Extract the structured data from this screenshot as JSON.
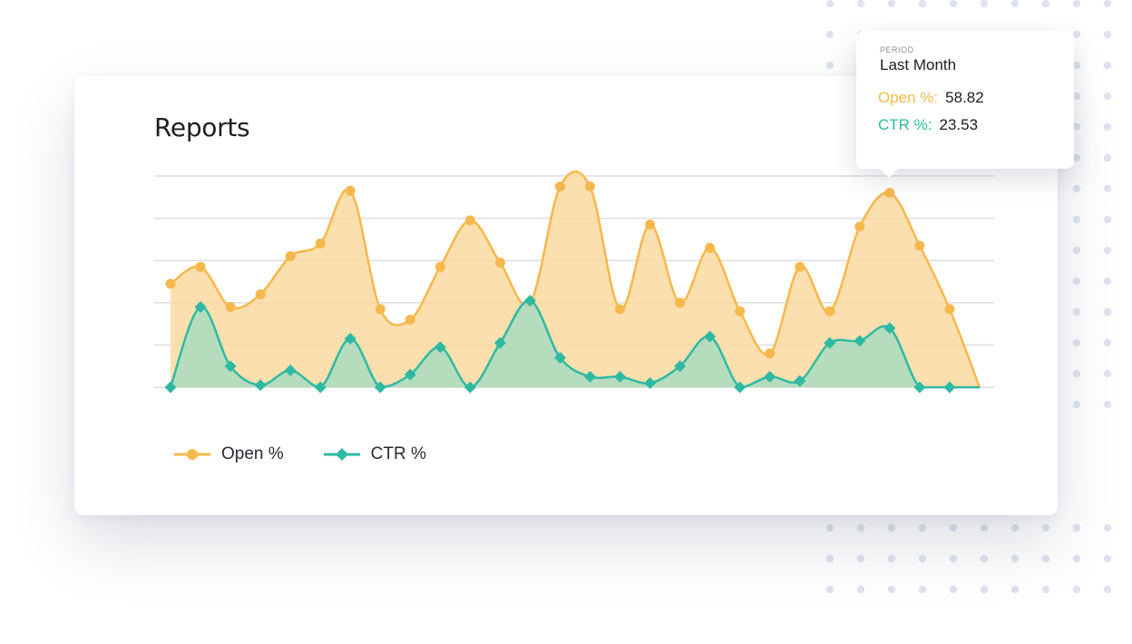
{
  "card": {
    "title": "Reports"
  },
  "colors": {
    "open_line": "#f6b84c",
    "open_fill": "#fcd9a0",
    "ctr_line": "#2ebaa2",
    "ctr_fill": "#a8dcc0",
    "grid": "#dedede",
    "dots": "#dfe3ef"
  },
  "tooltip": {
    "period_label": "PERIOD",
    "period_value": "Last Month",
    "open_label": "Open %:",
    "open_value": "58.82",
    "ctr_label": "CTR %:",
    "ctr_value": "23.53"
  },
  "legend": [
    {
      "label": "Open %",
      "marker": "circle"
    },
    {
      "label": "CTR %",
      "marker": "diamond"
    }
  ],
  "chart_data": {
    "type": "area",
    "x_count": 28,
    "y_range": [
      0,
      100
    ],
    "grid": true,
    "legend_position": "bottom-left",
    "series": [
      {
        "name": "Open %",
        "marker": "circle",
        "values": [
          49,
          57,
          38,
          44,
          62,
          68,
          93,
          37,
          32,
          57,
          79,
          59,
          40,
          95,
          95,
          37,
          77,
          40,
          66,
          36,
          16,
          57,
          36,
          76,
          92,
          67,
          37,
          0
        ]
      },
      {
        "name": "CTR %",
        "marker": "diamond",
        "values": [
          0,
          38,
          10,
          1,
          8,
          0,
          23,
          0,
          6,
          19,
          0,
          21,
          41,
          14,
          5,
          5,
          2,
          10,
          24,
          0,
          5,
          3,
          21,
          22,
          28,
          0,
          0,
          0
        ]
      }
    ]
  }
}
